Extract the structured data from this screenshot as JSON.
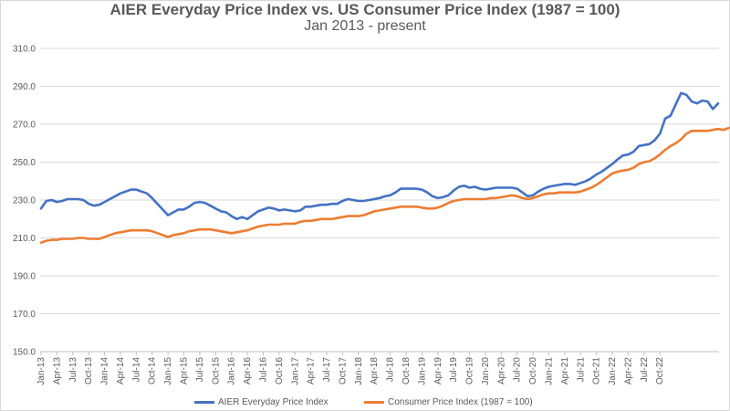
{
  "chart_data": {
    "type": "line",
    "title": "AIER Everyday Price Index vs. US Consumer Price Index (1987 = 100)",
    "subtitle": "Jan 2013 - present",
    "xlabel": "",
    "ylabel": "",
    "ylim": [
      150,
      310
    ],
    "y_ticks": [
      "150.0",
      "170.0",
      "190.0",
      "210.0",
      "230.0",
      "250.0",
      "270.0",
      "290.0",
      "310.0"
    ],
    "grid": true,
    "legend_position": "bottom",
    "x_tick_labels": [
      "Jan-13",
      "Apr-13",
      "Jul-13",
      "Oct-13",
      "Jan-14",
      "Apr-14",
      "Jul-14",
      "Oct-14",
      "Jan-15",
      "Apr-15",
      "Jul-15",
      "Oct-15",
      "Jan-16",
      "Apr-16",
      "Jul-16",
      "Oct-16",
      "Jan-17",
      "Apr-17",
      "Jul-17",
      "Oct-17",
      "Jan-18",
      "Apr-18",
      "Jul-18",
      "Oct-18",
      "Jan-19",
      "Apr-19",
      "Jul-19",
      "Oct-19",
      "Jan-20",
      "Apr-20",
      "Jul-20",
      "Oct-20",
      "Jan-21",
      "Apr-21",
      "Jul-21",
      "Oct-21",
      "Jan-22",
      "Apr-22",
      "Jul-22",
      "Oct-22"
    ],
    "x_start": "Jan-13",
    "x_end": "Feb-23",
    "series": [
      {
        "name": "AIER Everyday Price Index",
        "color": "#4472c4",
        "values": [
          225.5,
          229.5,
          230.0,
          229.0,
          229.5,
          230.5,
          230.5,
          230.5,
          230.0,
          228.0,
          227.0,
          227.5,
          229.0,
          230.5,
          232.0,
          233.5,
          234.5,
          235.5,
          235.5,
          234.5,
          233.5,
          231.0,
          228.0,
          225.0,
          222.0,
          223.5,
          225.0,
          225.0,
          226.5,
          228.5,
          229.0,
          228.5,
          227.0,
          225.5,
          224.0,
          223.5,
          221.5,
          220.0,
          221.0,
          220.0,
          222.0,
          224.0,
          225.0,
          226.0,
          225.5,
          224.5,
          225.0,
          224.5,
          224.0,
          224.5,
          226.5,
          226.5,
          227.0,
          227.5,
          227.5,
          228.0,
          228.0,
          229.5,
          230.5,
          230.0,
          229.5,
          229.5,
          230.0,
          230.5,
          231.0,
          232.0,
          232.5,
          234.0,
          236.0,
          236.0,
          236.0,
          236.0,
          235.5,
          234.0,
          232.0,
          231.0,
          231.5,
          232.5,
          235.0,
          237.0,
          237.5,
          236.5,
          237.0,
          236.0,
          235.5,
          236.0,
          236.5,
          236.5,
          236.5,
          236.5,
          236.0,
          234.0,
          232.0,
          232.5,
          234.5,
          236.0,
          237.0,
          237.5,
          238.0,
          238.5,
          238.5,
          238.0,
          239.0,
          240.0,
          241.5,
          243.5,
          245.0,
          247.0,
          249.0,
          251.5,
          253.5,
          254.0,
          255.5,
          258.5,
          259.0,
          259.5,
          261.5,
          265.0,
          273.0,
          274.5,
          280.5,
          286.5,
          285.5,
          282.0,
          281.0,
          282.5,
          282.0,
          278.0,
          281.0
        ]
      },
      {
        "name": "Consumer Price Index (1987 = 100)",
        "color": "#ed7d31",
        "values": [
          207.5,
          208.5,
          209.0,
          209.0,
          209.5,
          209.5,
          209.5,
          210.0,
          210.0,
          209.5,
          209.5,
          209.5,
          210.5,
          211.5,
          212.5,
          213.0,
          213.5,
          214.0,
          214.0,
          214.0,
          214.0,
          213.5,
          212.5,
          211.5,
          210.5,
          211.5,
          212.0,
          212.5,
          213.5,
          214.0,
          214.5,
          214.5,
          214.5,
          214.0,
          213.5,
          213.0,
          212.5,
          213.0,
          213.5,
          214.0,
          215.0,
          216.0,
          216.5,
          217.0,
          217.0,
          217.0,
          217.5,
          217.5,
          217.5,
          218.5,
          219.0,
          219.0,
          219.5,
          220.0,
          220.0,
          220.0,
          220.5,
          221.0,
          221.5,
          221.5,
          221.5,
          222.0,
          223.0,
          224.0,
          224.5,
          225.0,
          225.5,
          226.0,
          226.5,
          226.5,
          226.5,
          226.5,
          226.0,
          225.5,
          225.5,
          226.0,
          227.0,
          228.5,
          229.5,
          230.0,
          230.5,
          230.5,
          230.5,
          230.5,
          230.5,
          231.0,
          231.0,
          231.5,
          232.0,
          232.5,
          232.0,
          231.0,
          230.5,
          231.0,
          232.0,
          233.0,
          233.5,
          233.5,
          234.0,
          234.0,
          234.0,
          234.0,
          234.5,
          235.5,
          236.5,
          238.0,
          240.0,
          242.0,
          244.0,
          245.0,
          245.5,
          246.0,
          247.0,
          249.0,
          250.0,
          250.5,
          252.0,
          254.0,
          256.5,
          258.5,
          260.0,
          262.0,
          265.0,
          266.5,
          266.5,
          266.5,
          266.5,
          267.0,
          267.5,
          267.0,
          268.0
        ]
      }
    ]
  }
}
